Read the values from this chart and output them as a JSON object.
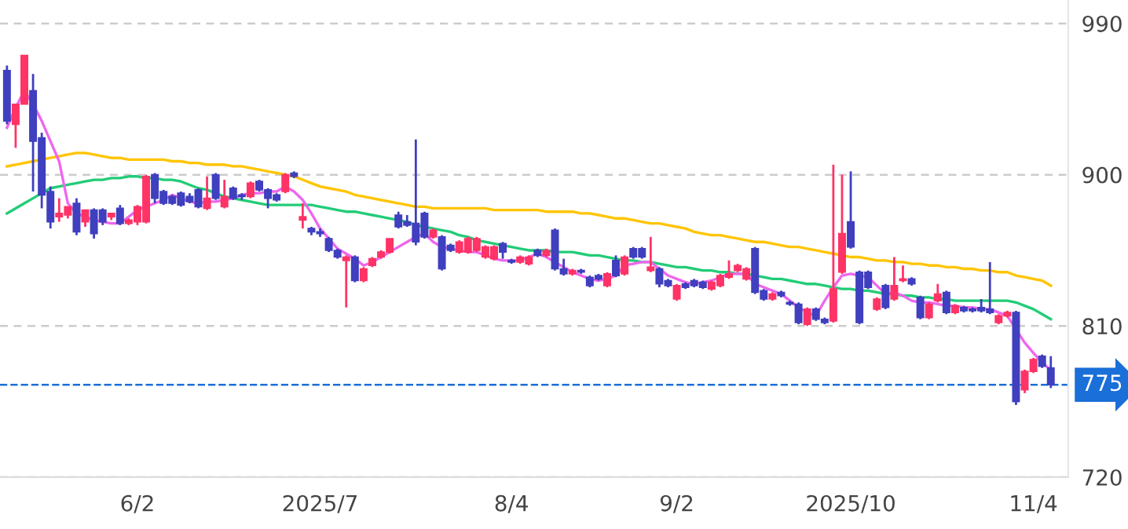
{
  "chart_data": {
    "type": "candlestick",
    "categories": [
      null,
      null,
      null,
      null,
      null,
      null,
      null,
      null,
      null,
      null,
      null,
      null,
      null,
      null,
      null,
      "6/2",
      null,
      null,
      null,
      null,
      null,
      null,
      null,
      null,
      null,
      null,
      null,
      null,
      null,
      null,
      null,
      null,
      null,
      null,
      null,
      null,
      "2025/7",
      null,
      null,
      null,
      null,
      null,
      null,
      null,
      null,
      null,
      null,
      null,
      null,
      null,
      null,
      null,
      null,
      null,
      null,
      null,
      null,
      null,
      "8/4",
      null,
      null,
      null,
      null,
      null,
      null,
      null,
      null,
      null,
      null,
      null,
      null,
      null,
      null,
      null,
      null,
      null,
      null,
      "9/2",
      null,
      null,
      null,
      null,
      null,
      null,
      null,
      null,
      null,
      null,
      null,
      null,
      null,
      null,
      null,
      null,
      null,
      null,
      null,
      "2025/10",
      null,
      null,
      null,
      null,
      null,
      null,
      null,
      null,
      null,
      null,
      null,
      null,
      null,
      null,
      null,
      null,
      null,
      null,
      null,
      null,
      "11/4",
      null,
      null
    ],
    "ohlc": [
      [
        962,
        965,
        930,
        932
      ],
      [
        930,
        942,
        916,
        942
      ],
      [
        942,
        971,
        942,
        971
      ],
      [
        950,
        960,
        890,
        920
      ],
      [
        922,
        925,
        880,
        888
      ],
      [
        890,
        893,
        868,
        872
      ],
      [
        875,
        886,
        872,
        877
      ],
      [
        876,
        881,
        874,
        881
      ],
      [
        883,
        886,
        864,
        866
      ],
      [
        872,
        879,
        869,
        879
      ],
      [
        879,
        880,
        862,
        865
      ],
      [
        879,
        880,
        870,
        872
      ],
      [
        875,
        877,
        873,
        877
      ],
      [
        880,
        882,
        870,
        871
      ],
      [
        871,
        874,
        870,
        873
      ],
      [
        872,
        882,
        870,
        881
      ],
      [
        872,
        900,
        871,
        899
      ],
      [
        900,
        901,
        883,
        886
      ],
      [
        890,
        891,
        882,
        883
      ],
      [
        887,
        888,
        882,
        883
      ],
      [
        889,
        890,
        881,
        882
      ],
      [
        887,
        889,
        883,
        884
      ],
      [
        891,
        892,
        880,
        881
      ],
      [
        880,
        899,
        879,
        886
      ],
      [
        900,
        901,
        885,
        886
      ],
      [
        881,
        897,
        880,
        887
      ],
      [
        892,
        893,
        885,
        886
      ],
      [
        888,
        889,
        885,
        887
      ],
      [
        887,
        896,
        886,
        895
      ],
      [
        896,
        897,
        890,
        891
      ],
      [
        891,
        892,
        880,
        886
      ],
      [
        888,
        889,
        884,
        885
      ],
      [
        890,
        901,
        889,
        900
      ],
      [
        901,
        902,
        898,
        899
      ],
      [
        873,
        883,
        868,
        875
      ],
      [
        868,
        869,
        864,
        866
      ],
      [
        866,
        868,
        863,
        865
      ],
      [
        862,
        863,
        854,
        855
      ],
      [
        855,
        856,
        850,
        851
      ],
      [
        849,
        852,
        821,
        851
      ],
      [
        851,
        852,
        836,
        837
      ],
      [
        837,
        845,
        836,
        844
      ],
      [
        846,
        851,
        845,
        850
      ],
      [
        851,
        855,
        850,
        854
      ],
      [
        854,
        862,
        853,
        862
      ],
      [
        876,
        878,
        868,
        869
      ],
      [
        872,
        876,
        869,
        870
      ],
      [
        871,
        921,
        858,
        860
      ],
      [
        877,
        878,
        862,
        863
      ],
      [
        863,
        868,
        862,
        867
      ],
      [
        863,
        864,
        843,
        844
      ],
      [
        858,
        859,
        854,
        855
      ],
      [
        854,
        861,
        853,
        860
      ],
      [
        854,
        863,
        853,
        862
      ],
      [
        855,
        863,
        854,
        862
      ],
      [
        851,
        858,
        850,
        857
      ],
      [
        850,
        858,
        849,
        857
      ],
      [
        859,
        860,
        850,
        854
      ],
      [
        849,
        850,
        847,
        848
      ],
      [
        848,
        852,
        847,
        851
      ],
      [
        847,
        852,
        846,
        851
      ],
      [
        855,
        856,
        851,
        852
      ],
      [
        852,
        856,
        851,
        855
      ],
      [
        867,
        868,
        843,
        844
      ],
      [
        844,
        850,
        840,
        841
      ],
      [
        841,
        844,
        840,
        843
      ],
      [
        843,
        844,
        841,
        842
      ],
      [
        839,
        840,
        833,
        834
      ],
      [
        840,
        841,
        837,
        838
      ],
      [
        834,
        842,
        833,
        841
      ],
      [
        849,
        852,
        839,
        840
      ],
      [
        841,
        852,
        840,
        851
      ],
      [
        856,
        857,
        850,
        851
      ],
      [
        856,
        857,
        850,
        851
      ],
      [
        843,
        863,
        842,
        845
      ],
      [
        844,
        845,
        833,
        835
      ],
      [
        837,
        838,
        833,
        834
      ],
      [
        826,
        835,
        825,
        834
      ],
      [
        835,
        836,
        832,
        833
      ],
      [
        837,
        838,
        833,
        834
      ],
      [
        836,
        837,
        832,
        833
      ],
      [
        832,
        837,
        831,
        836
      ],
      [
        834,
        841,
        833,
        840
      ],
      [
        839,
        849,
        838,
        841
      ],
      [
        843,
        847,
        842,
        846
      ],
      [
        838,
        845,
        837,
        844
      ],
      [
        856,
        857,
        829,
        830
      ],
      [
        831,
        832,
        825,
        826
      ],
      [
        826,
        830,
        825,
        829
      ],
      [
        830,
        831,
        827,
        828
      ],
      [
        824,
        825,
        822,
        823
      ],
      [
        823,
        824,
        811,
        812
      ],
      [
        811,
        821,
        810,
        820
      ],
      [
        820,
        821,
        813,
        814
      ],
      [
        814,
        815,
        811,
        812
      ],
      [
        813,
        906,
        812,
        832
      ],
      [
        842,
        900,
        841,
        865
      ],
      [
        872,
        902,
        856,
        857
      ],
      [
        842,
        843,
        811,
        812
      ],
      [
        842,
        843,
        832,
        833
      ],
      [
        820,
        827,
        819,
        826
      ],
      [
        834,
        835,
        820,
        821
      ],
      [
        826,
        851,
        825,
        834
      ],
      [
        837,
        846,
        836,
        838
      ],
      [
        838,
        839,
        834,
        835
      ],
      [
        827,
        828,
        814,
        815
      ],
      [
        815,
        824,
        814,
        823
      ],
      [
        825,
        835,
        824,
        829
      ],
      [
        830,
        831,
        817,
        818
      ],
      [
        818,
        823,
        817,
        822
      ],
      [
        821,
        822,
        818,
        819
      ],
      [
        820,
        821,
        818,
        819
      ],
      [
        821,
        826,
        818,
        819
      ],
      [
        820,
        848,
        817,
        818
      ],
      [
        812,
        817,
        811,
        816
      ],
      [
        816,
        819,
        815,
        818
      ],
      [
        818,
        819,
        763,
        765
      ],
      [
        772,
        784,
        770,
        783
      ],
      [
        783,
        791,
        782,
        790
      ],
      [
        792,
        793,
        785,
        786
      ],
      [
        785,
        792,
        773,
        775
      ]
    ],
    "colors": [
      "#3f3fbf",
      "#ff3366",
      "#ff3366",
      "#3f3fbf",
      "#3f3fbf",
      "#3f3fbf",
      "#ff3366",
      "#ff3366",
      "#3f3fbf",
      "#ff3366",
      "#3f3fbf",
      "#3f3fbf",
      "#ff3366",
      "#3f3fbf",
      "#ff3366",
      "#ff3366",
      "#ff3366",
      "#3f3fbf",
      "#3f3fbf",
      "#3f3fbf",
      "#3f3fbf",
      "#3f3fbf",
      "#3f3fbf",
      "#ff3366",
      "#3f3fbf",
      "#ff3366",
      "#3f3fbf",
      "#3f3fbf",
      "#ff3366",
      "#3f3fbf",
      "#3f3fbf",
      "#3f3fbf",
      "#ff3366",
      "#3f3fbf",
      "#ff3366",
      "#3f3fbf",
      "#3f3fbf",
      "#3f3fbf",
      "#3f3fbf",
      "#ff3366",
      "#3f3fbf",
      "#ff3366",
      "#ff3366",
      "#ff3366",
      "#ff3366",
      "#3f3fbf",
      "#3f3fbf",
      "#3f3fbf",
      "#3f3fbf",
      "#ff3366",
      "#3f3fbf",
      "#3f3fbf",
      "#ff3366",
      "#ff3366",
      "#ff3366",
      "#ff3366",
      "#ff3366",
      "#3f3fbf",
      "#3f3fbf",
      "#ff3366",
      "#ff3366",
      "#3f3fbf",
      "#ff3366",
      "#3f3fbf",
      "#3f3fbf",
      "#ff3366",
      "#3f3fbf",
      "#3f3fbf",
      "#3f3fbf",
      "#ff3366",
      "#3f3fbf",
      "#ff3366",
      "#3f3fbf",
      "#3f3fbf",
      "#ff3366",
      "#3f3fbf",
      "#3f3fbf",
      "#ff3366",
      "#3f3fbf",
      "#3f3fbf",
      "#3f3fbf",
      "#ff3366",
      "#ff3366",
      "#ff3366",
      "#ff3366",
      "#ff3366",
      "#3f3fbf",
      "#3f3fbf",
      "#ff3366",
      "#3f3fbf",
      "#3f3fbf",
      "#3f3fbf",
      "#ff3366",
      "#3f3fbf",
      "#3f3fbf",
      "#ff3366",
      "#ff3366",
      "#3f3fbf",
      "#3f3fbf",
      "#3f3fbf",
      "#ff3366",
      "#3f3fbf",
      "#ff3366",
      "#ff3366",
      "#3f3fbf",
      "#3f3fbf",
      "#ff3366",
      "#ff3366",
      "#3f3fbf",
      "#ff3366",
      "#3f3fbf",
      "#3f3fbf",
      "#3f3fbf",
      "#3f3fbf",
      "#ff3366",
      "#ff3366",
      "#3f3fbf",
      "#ff3366",
      "#ff3366",
      "#3f3fbf",
      "#3f3fbf"
    ],
    "series": [
      {
        "type": "line",
        "color": "#ffc400",
        "values": [
          905,
          906,
          907,
          908,
          909,
          910,
          911,
          912,
          913,
          913,
          912,
          911,
          910,
          910,
          909,
          909,
          909,
          909,
          909,
          908,
          908,
          907,
          907,
          906,
          906,
          906,
          905,
          905,
          904,
          903,
          902,
          901,
          900,
          899,
          897,
          895,
          893,
          892,
          891,
          890,
          888,
          887,
          886,
          885,
          884,
          883,
          882,
          881,
          881,
          880,
          880,
          880,
          880,
          880,
          880,
          880,
          879,
          879,
          879,
          879,
          879,
          879,
          878,
          878,
          878,
          878,
          877,
          877,
          876,
          875,
          874,
          874,
          873,
          872,
          871,
          871,
          870,
          869,
          868,
          866,
          865,
          864,
          864,
          863,
          862,
          861,
          860,
          860,
          859,
          858,
          857,
          857,
          856,
          855,
          854,
          853,
          852,
          851,
          851,
          850,
          849,
          849,
          848,
          848,
          847,
          847,
          846,
          846,
          845,
          845,
          844,
          844,
          843,
          843,
          842,
          842,
          840,
          839,
          838,
          837,
          834
        ]
      },
      {
        "type": "line",
        "color": "#22cc77",
        "values": [
          877,
          880,
          883,
          886,
          889,
          892,
          893,
          894,
          895,
          896,
          897,
          897,
          898,
          898,
          899,
          899,
          898,
          898,
          897,
          897,
          896,
          894,
          892,
          891,
          889,
          887,
          886,
          885,
          884,
          883,
          882,
          882,
          882,
          882,
          882,
          882,
          881,
          880,
          879,
          878,
          878,
          877,
          876,
          875,
          874,
          873,
          872,
          870,
          869,
          868,
          867,
          866,
          864,
          863,
          861,
          860,
          859,
          858,
          857,
          856,
          855,
          855,
          855,
          854,
          854,
          854,
          853,
          852,
          852,
          851,
          850,
          849,
          849,
          848,
          848,
          847,
          846,
          845,
          845,
          844,
          843,
          843,
          842,
          842,
          841,
          841,
          840,
          839,
          838,
          838,
          837,
          836,
          835,
          835,
          834,
          833,
          832,
          832,
          831,
          831,
          830,
          829,
          829,
          828,
          828,
          827,
          827,
          826,
          826,
          825,
          825,
          825,
          825,
          825,
          825,
          825,
          824,
          822,
          820,
          817,
          814
        ]
      },
      {
        "type": "line",
        "color": "#ee66ee",
        "values": [
          928,
          940,
          950,
          942,
          932,
          920,
          908,
          883,
          877,
          875,
          873,
          872,
          871,
          871,
          875,
          879,
          881,
          883,
          885,
          888,
          886,
          884,
          883,
          884,
          884,
          885,
          886,
          888,
          889,
          889,
          890,
          890,
          893,
          890,
          885,
          877,
          868,
          862,
          856,
          853,
          850,
          846,
          848,
          851,
          854,
          857,
          860,
          863,
          865,
          860,
          857,
          856,
          855,
          854,
          854,
          852,
          850,
          849,
          849,
          849,
          851,
          853,
          851,
          848,
          845,
          842,
          840,
          838,
          837,
          838,
          840,
          846,
          847,
          848,
          848,
          844,
          840,
          838,
          836,
          835,
          836,
          837,
          839,
          841,
          841,
          841,
          835,
          833,
          831,
          829,
          825,
          821,
          818,
          816,
          825,
          833,
          840,
          841,
          840,
          839,
          834,
          829,
          830,
          828,
          825,
          824,
          824,
          823,
          822,
          822,
          821,
          821,
          820,
          820,
          818,
          816,
          808,
          800,
          794,
          788,
          784
        ]
      }
    ],
    "ylim": [
      720,
      1004
    ],
    "yticks": [
      720,
      810,
      900,
      990
    ],
    "grid": "y",
    "ref_lines": [
      {
        "axis": "y",
        "value": 775,
        "label": "775",
        "color": "#1a6fd8",
        "line_style": "dashed"
      }
    ]
  }
}
